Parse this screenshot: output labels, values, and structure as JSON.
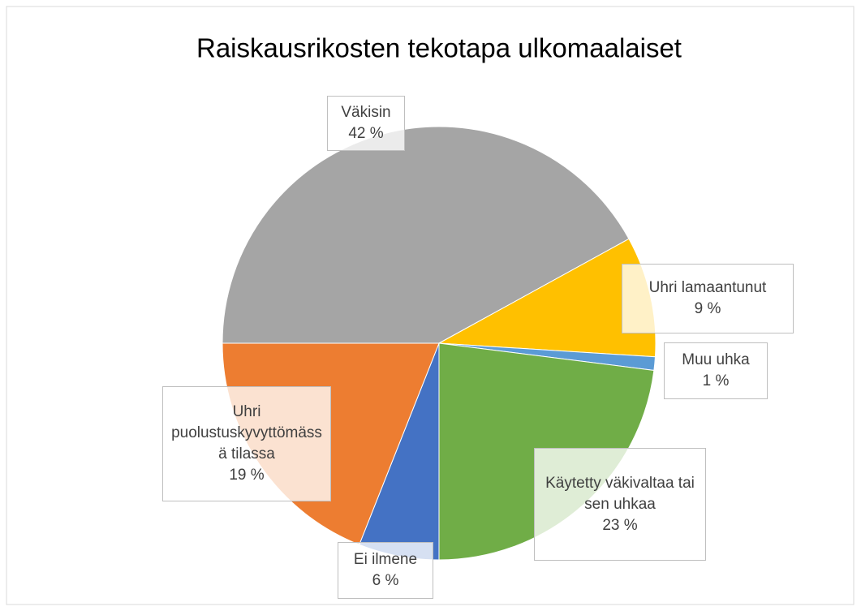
{
  "chart_data": {
    "type": "pie",
    "title": "Raiskausrikosten tekotapa ulkomaalaiset",
    "categories": [
      "Väkisin",
      "Uhri lamaantunut",
      "Muu uhka",
      "Käytetty väkivaltaa tai sen uhkaa",
      "Ei ilmene",
      "Uhri puolustuskyvyttömässä tilassa"
    ],
    "values": [
      42,
      9,
      1,
      23,
      6,
      19
    ],
    "value_labels": [
      "42 %",
      "9 %",
      "1 %",
      "23 %",
      "6 %",
      "19 %"
    ],
    "colors": [
      "#a5a5a5",
      "#ffc000",
      "#5b9bd5",
      "#70ad47",
      "#4472c4",
      "#ed7d31"
    ]
  }
}
